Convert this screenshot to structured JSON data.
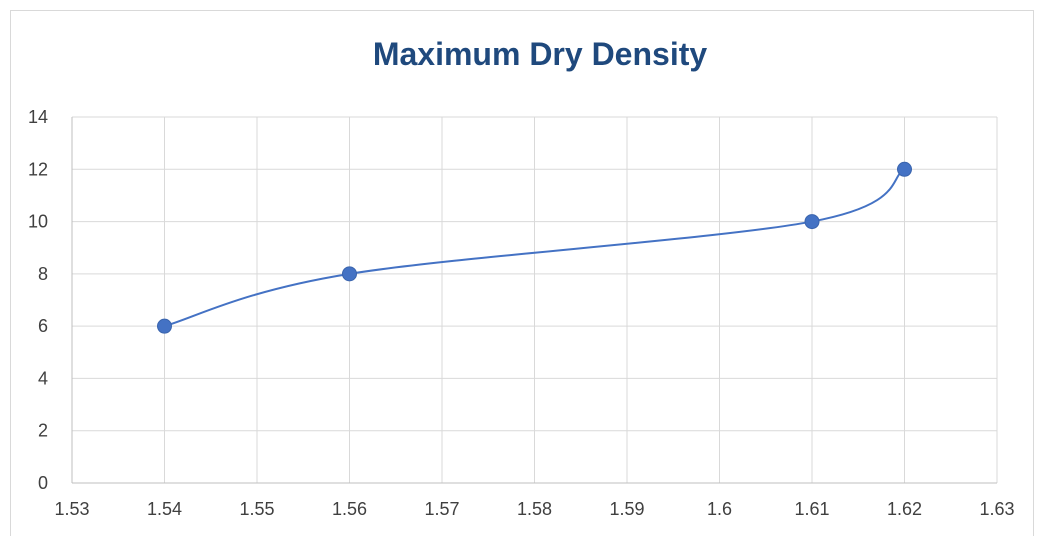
{
  "chart_data": {
    "type": "scatter",
    "title": "Maximum Dry Density",
    "xlabel": "",
    "ylabel": "",
    "xlim": [
      1.53,
      1.63
    ],
    "ylim": [
      0,
      14
    ],
    "x_ticks": [
      "1.53",
      "1.54",
      "1.55",
      "1.56",
      "1.57",
      "1.58",
      "1.59",
      "1.6",
      "1.61",
      "1.62",
      "1.63"
    ],
    "y_ticks": [
      "0",
      "2",
      "4",
      "6",
      "8",
      "10",
      "12",
      "14"
    ],
    "grid": true,
    "smooth_line": true,
    "series": [
      {
        "x": [
          1.54,
          1.56,
          1.61,
          1.62
        ],
        "y": [
          6,
          8,
          10,
          12
        ]
      }
    ],
    "colors": {
      "series": "#4472c4",
      "grid": "#d9d9d9",
      "axis": "#bfbfbf",
      "title": "#1f497d"
    }
  }
}
